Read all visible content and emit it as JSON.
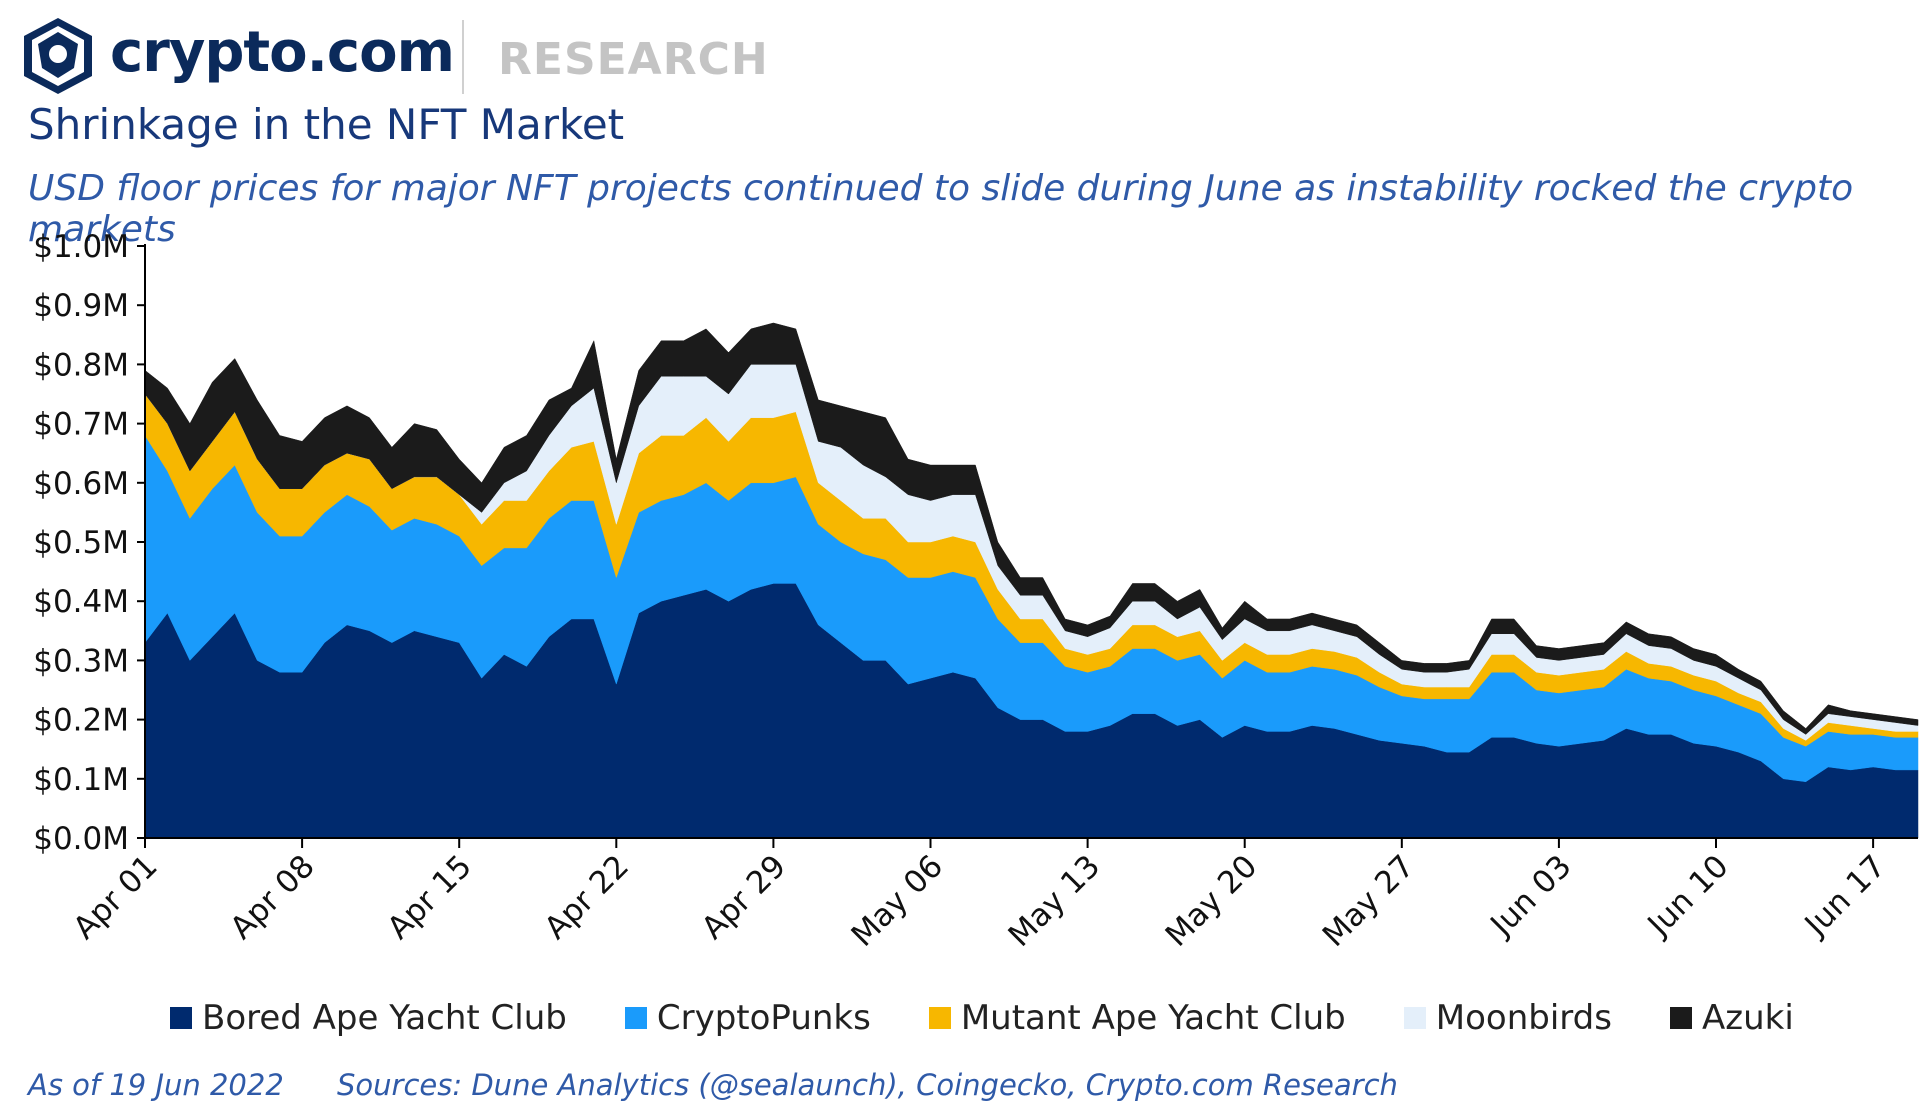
{
  "brand": {
    "logo_text": "crypto.com",
    "section": "RESEARCH",
    "logo_icon": "crypto-com-lion-shield-icon"
  },
  "colors": {
    "bayc": "#002a6e",
    "punks": "#1a9bfb",
    "mayc": "#f7b700",
    "moonbirds": "#e4effa",
    "azuki": "#1b1b1b",
    "title": "#17387a",
    "subtitle": "#2f5aa8"
  },
  "title": "Shrinkage in the NFT Market",
  "subtitle": "USD floor prices for major NFT projects continued to slide during June as instability rocked the crypto markets",
  "footer": {
    "asof": "As of 19 Jun 2022",
    "sources": "Sources: Dune Analytics (@sealaunch), Coingecko, Crypto.com Research"
  },
  "chart_data": {
    "type": "area",
    "stacked": true,
    "x": [
      "2022-04-01",
      "2022-04-02",
      "2022-04-03",
      "2022-04-04",
      "2022-04-05",
      "2022-04-06",
      "2022-04-07",
      "2022-04-08",
      "2022-04-09",
      "2022-04-10",
      "2022-04-11",
      "2022-04-12",
      "2022-04-13",
      "2022-04-14",
      "2022-04-15",
      "2022-04-16",
      "2022-04-17",
      "2022-04-18",
      "2022-04-19",
      "2022-04-20",
      "2022-04-21",
      "2022-04-22",
      "2022-04-23",
      "2022-04-24",
      "2022-04-25",
      "2022-04-26",
      "2022-04-27",
      "2022-04-28",
      "2022-04-29",
      "2022-04-30",
      "2022-05-01",
      "2022-05-02",
      "2022-05-03",
      "2022-05-04",
      "2022-05-05",
      "2022-05-06",
      "2022-05-07",
      "2022-05-08",
      "2022-05-09",
      "2022-05-10",
      "2022-05-11",
      "2022-05-12",
      "2022-05-13",
      "2022-05-14",
      "2022-05-15",
      "2022-05-16",
      "2022-05-17",
      "2022-05-18",
      "2022-05-19",
      "2022-05-20",
      "2022-05-21",
      "2022-05-22",
      "2022-05-23",
      "2022-05-24",
      "2022-05-25",
      "2022-05-26",
      "2022-05-27",
      "2022-05-28",
      "2022-05-29",
      "2022-05-30",
      "2022-05-31",
      "2022-06-01",
      "2022-06-02",
      "2022-06-03",
      "2022-06-04",
      "2022-06-05",
      "2022-06-06",
      "2022-06-07",
      "2022-06-08",
      "2022-06-09",
      "2022-06-10",
      "2022-06-11",
      "2022-06-12",
      "2022-06-13",
      "2022-06-14",
      "2022-06-15",
      "2022-06-16",
      "2022-06-17",
      "2022-06-18",
      "2022-06-19"
    ],
    "x_tick_labels": [
      "Apr 01",
      "Apr 08",
      "Apr 15",
      "Apr 22",
      "Apr 29",
      "May 06",
      "May 13",
      "May 20",
      "May 27",
      "Jun 03",
      "Jun 10",
      "Jun 17"
    ],
    "y_tick_labels": [
      "$0.0M",
      "$0.1M",
      "$0.2M",
      "$0.3M",
      "$0.4M",
      "$0.5M",
      "$0.6M",
      "$0.7M",
      "$0.8M",
      "$0.9M",
      "$1.0M"
    ],
    "ylim": [
      0,
      1.0
    ],
    "ylabel_unit": "USD millions",
    "series": [
      {
        "name": "Bored Ape Yacht Club",
        "color": "#002a6e",
        "values": [
          0.33,
          0.38,
          0.3,
          0.34,
          0.38,
          0.3,
          0.28,
          0.28,
          0.33,
          0.36,
          0.35,
          0.33,
          0.35,
          0.34,
          0.33,
          0.27,
          0.31,
          0.29,
          0.34,
          0.37,
          0.37,
          0.26,
          0.38,
          0.4,
          0.41,
          0.42,
          0.4,
          0.42,
          0.43,
          0.43,
          0.36,
          0.33,
          0.3,
          0.3,
          0.26,
          0.27,
          0.28,
          0.27,
          0.22,
          0.2,
          0.2,
          0.18,
          0.18,
          0.19,
          0.21,
          0.21,
          0.19,
          0.2,
          0.17,
          0.19,
          0.18,
          0.18,
          0.19,
          0.185,
          0.175,
          0.165,
          0.16,
          0.155,
          0.145,
          0.145,
          0.17,
          0.17,
          0.16,
          0.155,
          0.16,
          0.165,
          0.185,
          0.175,
          0.175,
          0.16,
          0.155,
          0.145,
          0.13,
          0.1,
          0.095,
          0.12,
          0.115,
          0.12,
          0.115,
          0.115
        ]
      },
      {
        "name": "CryptoPunks",
        "color": "#1a9bfb",
        "values": [
          0.35,
          0.24,
          0.24,
          0.25,
          0.25,
          0.25,
          0.23,
          0.23,
          0.22,
          0.22,
          0.21,
          0.19,
          0.19,
          0.19,
          0.18,
          0.19,
          0.18,
          0.2,
          0.2,
          0.2,
          0.2,
          0.18,
          0.17,
          0.17,
          0.17,
          0.18,
          0.17,
          0.18,
          0.17,
          0.18,
          0.17,
          0.17,
          0.18,
          0.17,
          0.18,
          0.17,
          0.17,
          0.17,
          0.15,
          0.13,
          0.13,
          0.11,
          0.1,
          0.1,
          0.11,
          0.11,
          0.11,
          0.11,
          0.1,
          0.11,
          0.1,
          0.1,
          0.1,
          0.1,
          0.1,
          0.09,
          0.08,
          0.08,
          0.09,
          0.09,
          0.11,
          0.11,
          0.09,
          0.09,
          0.09,
          0.09,
          0.1,
          0.095,
          0.09,
          0.09,
          0.085,
          0.08,
          0.08,
          0.07,
          0.06,
          0.06,
          0.06,
          0.055,
          0.055,
          0.055
        ]
      },
      {
        "name": "Mutant Ape Yacht Club",
        "color": "#f7b700",
        "values": [
          0.07,
          0.08,
          0.08,
          0.08,
          0.09,
          0.09,
          0.08,
          0.08,
          0.08,
          0.07,
          0.08,
          0.07,
          0.07,
          0.08,
          0.07,
          0.07,
          0.08,
          0.08,
          0.08,
          0.09,
          0.1,
          0.09,
          0.1,
          0.11,
          0.1,
          0.11,
          0.1,
          0.11,
          0.11,
          0.11,
          0.07,
          0.07,
          0.06,
          0.07,
          0.06,
          0.06,
          0.06,
          0.06,
          0.05,
          0.04,
          0.04,
          0.03,
          0.03,
          0.03,
          0.04,
          0.04,
          0.04,
          0.04,
          0.03,
          0.03,
          0.03,
          0.03,
          0.03,
          0.03,
          0.03,
          0.025,
          0.02,
          0.02,
          0.02,
          0.02,
          0.03,
          0.03,
          0.03,
          0.03,
          0.03,
          0.03,
          0.03,
          0.025,
          0.025,
          0.025,
          0.025,
          0.02,
          0.02,
          0.015,
          0.01,
          0.015,
          0.015,
          0.01,
          0.01,
          0.01
        ]
      },
      {
        "name": "Moonbirds",
        "color": "#e4effa",
        "values": [
          0,
          0,
          0,
          0,
          0,
          0,
          0,
          0,
          0,
          0,
          0,
          0,
          0,
          0,
          0,
          0.02,
          0.03,
          0.05,
          0.06,
          0.07,
          0.09,
          0.07,
          0.08,
          0.1,
          0.1,
          0.07,
          0.08,
          0.09,
          0.09,
          0.08,
          0.07,
          0.09,
          0.09,
          0.07,
          0.08,
          0.07,
          0.07,
          0.08,
          0.04,
          0.04,
          0.04,
          0.03,
          0.03,
          0.035,
          0.04,
          0.04,
          0.03,
          0.04,
          0.035,
          0.04,
          0.04,
          0.04,
          0.04,
          0.035,
          0.035,
          0.03,
          0.025,
          0.025,
          0.025,
          0.03,
          0.035,
          0.035,
          0.025,
          0.025,
          0.025,
          0.025,
          0.03,
          0.03,
          0.03,
          0.025,
          0.025,
          0.025,
          0.02,
          0.015,
          0.01,
          0.015,
          0.015,
          0.015,
          0.015,
          0.01
        ]
      },
      {
        "name": "Azuki",
        "color": "#1b1b1b",
        "values": [
          0.04,
          0.06,
          0.08,
          0.1,
          0.09,
          0.1,
          0.09,
          0.08,
          0.08,
          0.08,
          0.07,
          0.07,
          0.09,
          0.08,
          0.06,
          0.05,
          0.06,
          0.06,
          0.06,
          0.03,
          0.08,
          0.04,
          0.06,
          0.06,
          0.06,
          0.08,
          0.07,
          0.06,
          0.07,
          0.06,
          0.07,
          0.07,
          0.09,
          0.1,
          0.06,
          0.06,
          0.05,
          0.05,
          0.04,
          0.03,
          0.03,
          0.02,
          0.02,
          0.02,
          0.03,
          0.03,
          0.03,
          0.03,
          0.02,
          0.03,
          0.02,
          0.02,
          0.02,
          0.02,
          0.02,
          0.02,
          0.015,
          0.015,
          0.015,
          0.015,
          0.025,
          0.025,
          0.02,
          0.02,
          0.02,
          0.02,
          0.02,
          0.02,
          0.02,
          0.02,
          0.02,
          0.015,
          0.015,
          0.015,
          0.01,
          0.015,
          0.01,
          0.01,
          0.01,
          0.01
        ]
      }
    ],
    "legend_position": "bottom",
    "grid": false
  }
}
